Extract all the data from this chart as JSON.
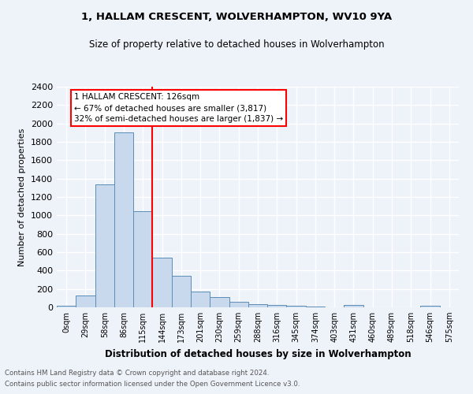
{
  "title1": "1, HALLAM CRESCENT, WOLVERHAMPTON, WV10 9YA",
  "title2": "Size of property relative to detached houses in Wolverhampton",
  "xlabel": "Distribution of detached houses by size in Wolverhampton",
  "ylabel": "Number of detached properties",
  "footnote1": "Contains HM Land Registry data © Crown copyright and database right 2024.",
  "footnote2": "Contains public sector information licensed under the Open Government Licence v3.0.",
  "bin_labels": [
    "0sqm",
    "29sqm",
    "58sqm",
    "86sqm",
    "115sqm",
    "144sqm",
    "173sqm",
    "201sqm",
    "230sqm",
    "259sqm",
    "288sqm",
    "316sqm",
    "345sqm",
    "374sqm",
    "403sqm",
    "431sqm",
    "460sqm",
    "489sqm",
    "518sqm",
    "546sqm",
    "575sqm"
  ],
  "bar_values": [
    15,
    130,
    1340,
    1900,
    1050,
    540,
    340,
    170,
    110,
    60,
    35,
    25,
    15,
    5,
    0,
    25,
    0,
    0,
    0,
    20,
    0
  ],
  "bar_color": "#c9d9ed",
  "bar_edge_color": "#5b8db8",
  "vline_x_idx": 4,
  "vline_color": "red",
  "annotation_title": "1 HALLAM CRESCENT: 126sqm",
  "annotation_line1": "← 67% of detached houses are smaller (3,817)",
  "annotation_line2": "32% of semi-detached houses are larger (1,837) →",
  "annotation_box_color": "white",
  "annotation_box_edge_color": "red",
  "ylim": [
    0,
    2400
  ],
  "yticks": [
    0,
    200,
    400,
    600,
    800,
    1000,
    1200,
    1400,
    1600,
    1800,
    2000,
    2200,
    2400
  ],
  "bg_color": "#eef2f9",
  "grid_color": "white"
}
